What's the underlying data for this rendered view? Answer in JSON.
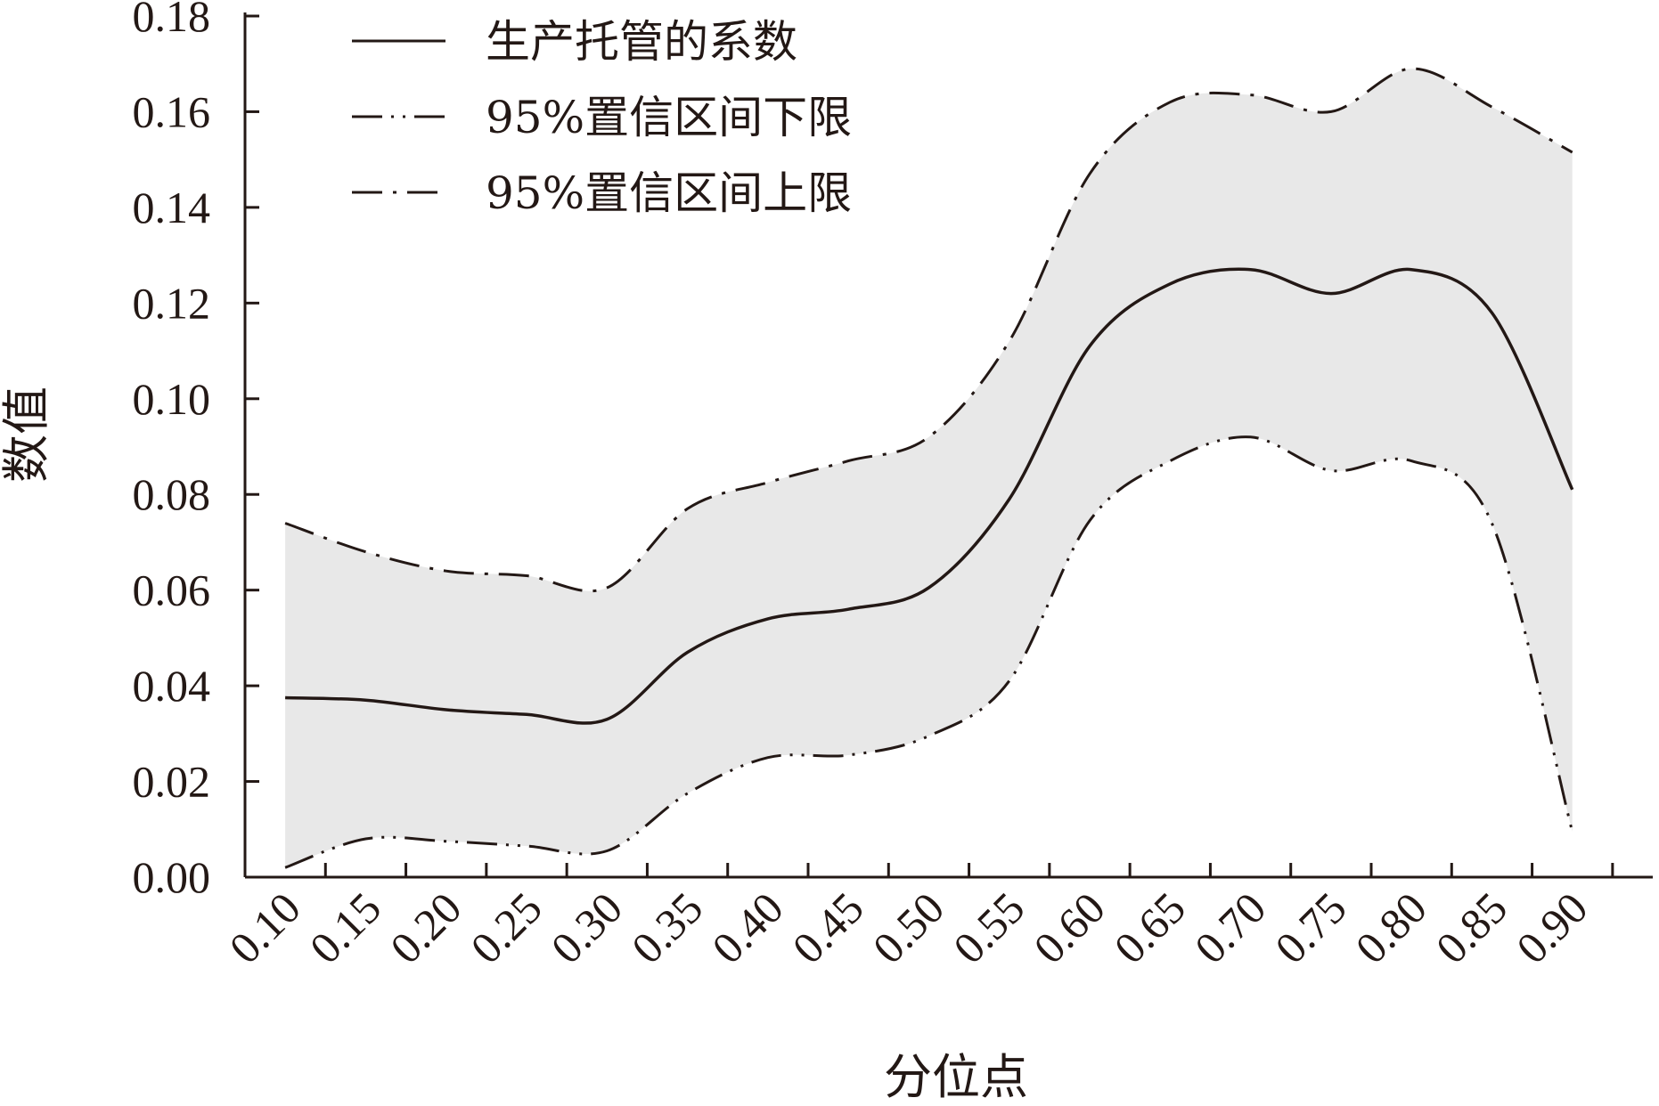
{
  "chart_data": {
    "type": "line",
    "title": "",
    "xlabel": "分位点",
    "ylabel": "数值",
    "x": [
      0.1,
      0.15,
      0.2,
      0.25,
      0.3,
      0.35,
      0.4,
      0.45,
      0.5,
      0.55,
      0.6,
      0.65,
      0.7,
      0.75,
      0.8,
      0.85,
      0.9
    ],
    "x_tick_labels": [
      "0.10",
      "0.15",
      "0.20",
      "0.25",
      "0.30",
      "0.35",
      "0.40",
      "0.45",
      "0.50",
      "0.55",
      "0.60",
      "0.65",
      "0.70",
      "0.75",
      "0.80",
      "0.85",
      "0.90"
    ],
    "y_tick_labels": [
      "0.00",
      "0.02",
      "0.04",
      "0.06",
      "0.08",
      "0.10",
      "0.12",
      "0.14",
      "0.16",
      "0.18"
    ],
    "xlim": [
      0.075,
      0.95
    ],
    "ylim": [
      0,
      0.18
    ],
    "grid": false,
    "legend_position": "top-left",
    "band_color": "#e8e8e8",
    "line_color": "#231815",
    "series": [
      {
        "name": "生产托管的系数",
        "style": "solid",
        "values": [
          0.0375,
          0.037,
          0.035,
          0.034,
          0.033,
          0.047,
          0.054,
          0.056,
          0.0605,
          0.079,
          0.111,
          0.124,
          0.127,
          0.122,
          0.127,
          0.118,
          0.081
        ]
      },
      {
        "name": "95%置信区间下限",
        "style": "dash-dot-dot",
        "values": [
          0.002,
          0.008,
          0.0075,
          0.0065,
          0.0055,
          0.0175,
          0.025,
          0.0255,
          0.0295,
          0.041,
          0.0745,
          0.087,
          0.092,
          0.085,
          0.087,
          0.074,
          0.0095
        ]
      },
      {
        "name": "95%置信区间上限",
        "style": "dash-dot",
        "values": [
          0.074,
          0.068,
          0.064,
          0.063,
          0.0605,
          0.077,
          0.0825,
          0.087,
          0.092,
          0.112,
          0.147,
          0.162,
          0.1635,
          0.16,
          0.169,
          0.161,
          0.1515
        ]
      }
    ]
  }
}
